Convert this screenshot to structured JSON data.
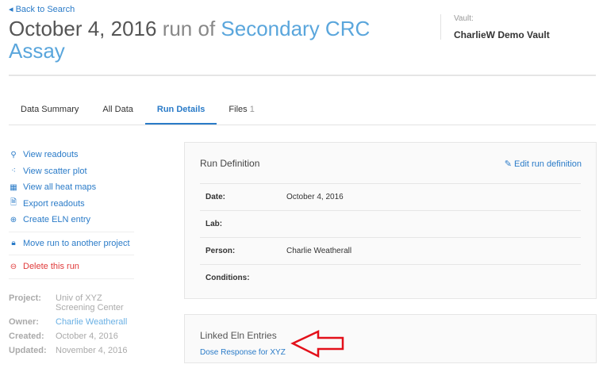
{
  "nav": {
    "back_label": "Back to Search"
  },
  "header": {
    "date": "October 4, 2016",
    "run_of": " run of ",
    "assay": "Secondary CRC Assay"
  },
  "vault": {
    "label": "Vault:",
    "name": "CharlieW Demo Vault"
  },
  "tabs": [
    {
      "label": "Data Summary"
    },
    {
      "label": "All Data"
    },
    {
      "label": "Run Details",
      "active": true
    },
    {
      "label": "Files",
      "count": "1"
    }
  ],
  "actions": [
    {
      "label": "View readouts",
      "icon": "search-icon"
    },
    {
      "label": "View scatter plot",
      "icon": "scatter-icon"
    },
    {
      "label": "View all heat maps",
      "icon": "heatmap-icon"
    },
    {
      "label": "Export readouts",
      "icon": "export-icon"
    },
    {
      "label": "Create ELN entry",
      "icon": "plus-circle-icon"
    },
    {
      "label": "Move run to another project",
      "icon": "lock-icon"
    },
    {
      "label": "Delete this run",
      "icon": "minus-circle-icon"
    }
  ],
  "meta": [
    {
      "k": "Project:",
      "v": "Univ of XYZ Screening Center"
    },
    {
      "k": "Owner:",
      "v": "Charlie Weatherall"
    },
    {
      "k": "Created:",
      "v": "October 4, 2016"
    },
    {
      "k": "Updated:",
      "v": "November 4, 2016"
    }
  ],
  "run_definition": {
    "title": "Run Definition",
    "edit_label": "Edit run definition",
    "fields": [
      {
        "k": "Date:",
        "v": "October 4, 2016"
      },
      {
        "k": "Lab:",
        "v": ""
      },
      {
        "k": "Person:",
        "v": "Charlie Weatherall"
      },
      {
        "k": "Conditions:",
        "v": ""
      }
    ]
  },
  "linked_eln": {
    "title": "Linked Eln Entries",
    "entries": [
      {
        "label": "Dose Response for XYZ"
      }
    ]
  },
  "colors": {
    "link": "#2a7bc8",
    "delete": "#e03a3a",
    "annotation_arrow": "#e3101a"
  }
}
